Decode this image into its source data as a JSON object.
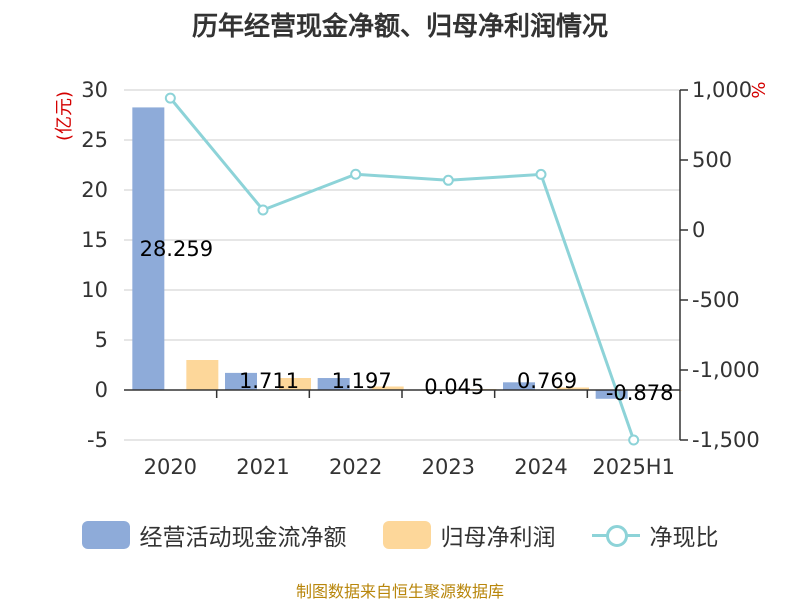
{
  "chart_data": {
    "type": "bar",
    "title": "历年经营现金净额、归母净利润情况",
    "categories": [
      "2020",
      "2021",
      "2022",
      "2023",
      "2024",
      "2025H1"
    ],
    "y_left": {
      "label": "(亿元)",
      "ticks": [
        "30",
        "25",
        "20",
        "15",
        "10",
        "5",
        "0",
        "-5"
      ],
      "min": -5,
      "max": 30
    },
    "y_right": {
      "unit": "%",
      "ticks": [
        "1,000",
        "500",
        "0",
        "-500",
        "-1,000",
        "-1,500"
      ],
      "min": -1500,
      "max": 1000
    },
    "series": [
      {
        "name": "经营活动现金流净额",
        "kind": "bar",
        "axis": "left",
        "color": "#8eabd9",
        "values": [
          28.259,
          1.711,
          1.197,
          0.045,
          0.769,
          -0.878
        ],
        "labels": [
          "28.259",
          "1.711",
          "1.197",
          "0.045",
          "0.769",
          "-0.878"
        ]
      },
      {
        "name": "归母净利润",
        "kind": "bar",
        "axis": "left",
        "color": "#fdd79a",
        "values": [
          3.0,
          1.2,
          0.35,
          0.1,
          0.25,
          -0.05
        ]
      },
      {
        "name": "净现比",
        "kind": "line",
        "axis": "right",
        "color": "#8dd3d8",
        "values": [
          942,
          143,
          398,
          355,
          397,
          -1500
        ]
      }
    ],
    "grid": true,
    "legend_position": "bottom"
  },
  "source_note": "制图数据来自恒生聚源数据库"
}
